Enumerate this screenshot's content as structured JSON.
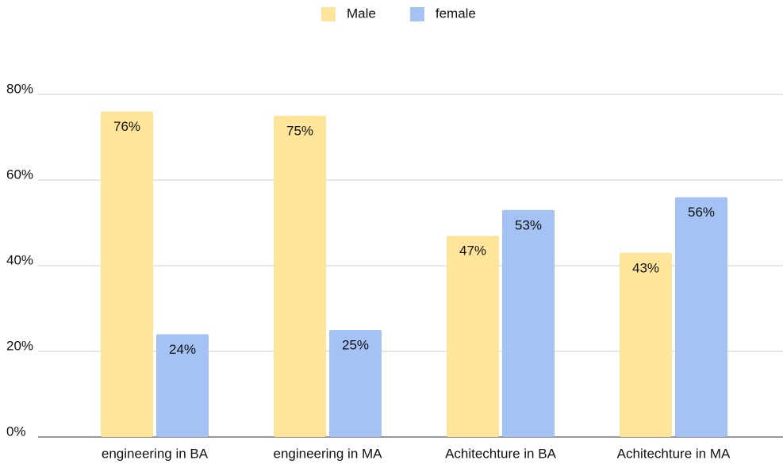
{
  "chart_data": {
    "type": "bar",
    "categories": [
      "engineering in BA",
      "engineering in MA",
      "Achitechture in BA",
      "Achitechture in MA"
    ],
    "series": [
      {
        "name": "Male",
        "color": "#ffe599",
        "values": [
          76,
          75,
          47,
          43
        ],
        "value_labels": [
          "76%",
          "75%",
          "47%",
          "43%"
        ]
      },
      {
        "name": "female",
        "color": "#a4c2f4",
        "values": [
          24,
          25,
          53,
          56
        ],
        "value_labels": [
          "24%",
          "25%",
          "53%",
          "56%"
        ]
      }
    ],
    "ylim": [
      0,
      80
    ],
    "yticks": [
      {
        "value": 0,
        "label": "0%"
      },
      {
        "value": 20,
        "label": "20%"
      },
      {
        "value": 40,
        "label": "40%"
      },
      {
        "value": 60,
        "label": "60%"
      },
      {
        "value": 80,
        "label": "80%"
      }
    ],
    "grid": true,
    "legend": "top"
  }
}
